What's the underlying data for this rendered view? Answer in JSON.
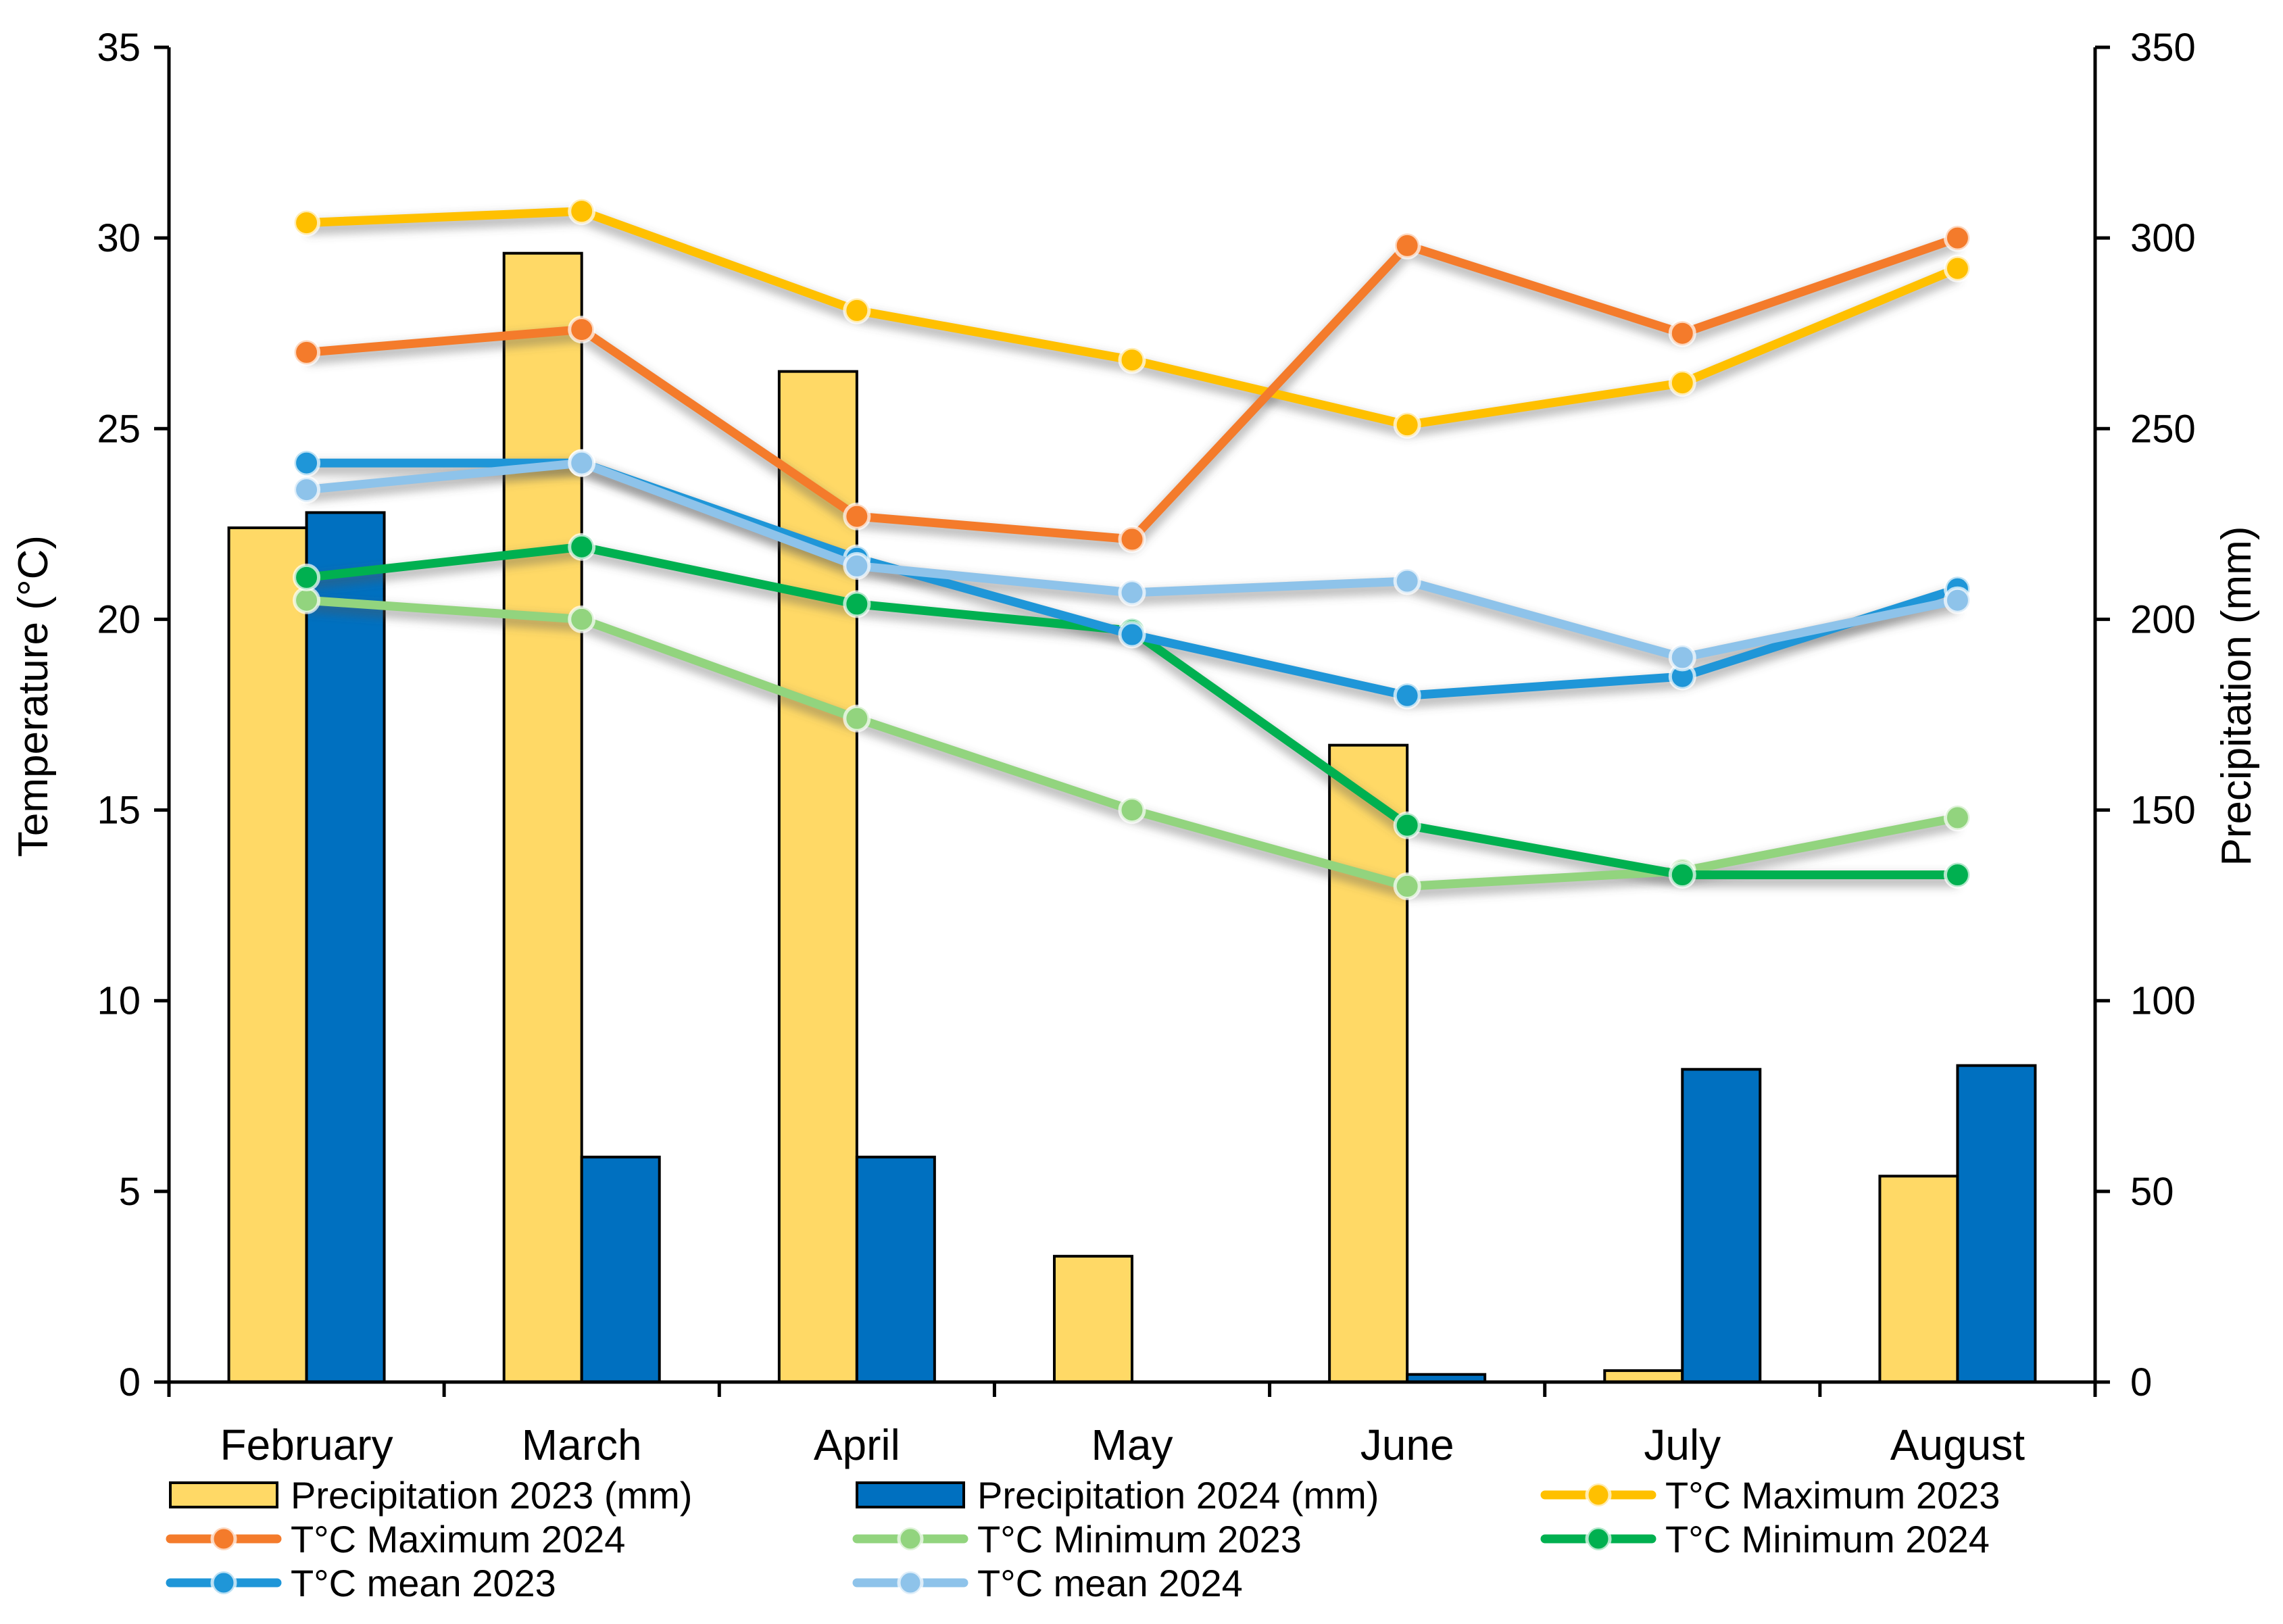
{
  "chart_data": {
    "type": "bar+line",
    "categories": [
      "February",
      "March",
      "April",
      "May",
      "June",
      "July",
      "August"
    ],
    "ylabel_left": "Temperature (°C)",
    "ylabel_right": "Precipitation (mm)",
    "ylim_left": [
      0,
      35
    ],
    "ylim_right": [
      0,
      350
    ],
    "yticks_left": [
      "0",
      "5",
      "10",
      "15",
      "20",
      "25",
      "30",
      "35"
    ],
    "yticks_right": [
      "0",
      "50",
      "100",
      "150",
      "200",
      "250",
      "300",
      "350"
    ],
    "legend_position": "bottom",
    "bars": [
      {
        "name": "Precipitation 2023 (mm)",
        "color": "#FFD966",
        "values": [
          224,
          296,
          265,
          33,
          167,
          3,
          54
        ]
      },
      {
        "name": "Precipitation 2024 (mm)",
        "color": "#0070C0",
        "values": [
          228,
          59,
          59,
          0,
          2,
          82,
          83
        ]
      }
    ],
    "lines": [
      {
        "name": "T°C Maximum 2023",
        "color": "#FFC000",
        "values": [
          30.4,
          30.7,
          28.1,
          26.8,
          25.1,
          26.2,
          29.2
        ]
      },
      {
        "name": "T°C Maximum 2024",
        "color": "#F47B2B",
        "values": [
          27.0,
          27.6,
          22.7,
          22.1,
          29.8,
          27.5,
          30.0
        ]
      },
      {
        "name": "T°C Minimum 2023",
        "color": "#92D47E",
        "values": [
          20.5,
          20.0,
          17.4,
          15.0,
          13.0,
          13.4,
          14.8
        ]
      },
      {
        "name": "T°C Minimum 2024",
        "color": "#00B050",
        "values": [
          21.1,
          21.9,
          20.4,
          19.7,
          14.6,
          13.3,
          13.3
        ]
      },
      {
        "name": "T°C mean 2023",
        "color": "#1F96D8",
        "values": [
          24.1,
          24.1,
          21.6,
          19.6,
          18.0,
          18.5,
          20.8
        ]
      },
      {
        "name": "T°C mean 2024",
        "color": "#8EC3EA",
        "values": [
          23.4,
          24.1,
          21.4,
          20.7,
          21.0,
          19.0,
          20.5
        ]
      }
    ]
  }
}
